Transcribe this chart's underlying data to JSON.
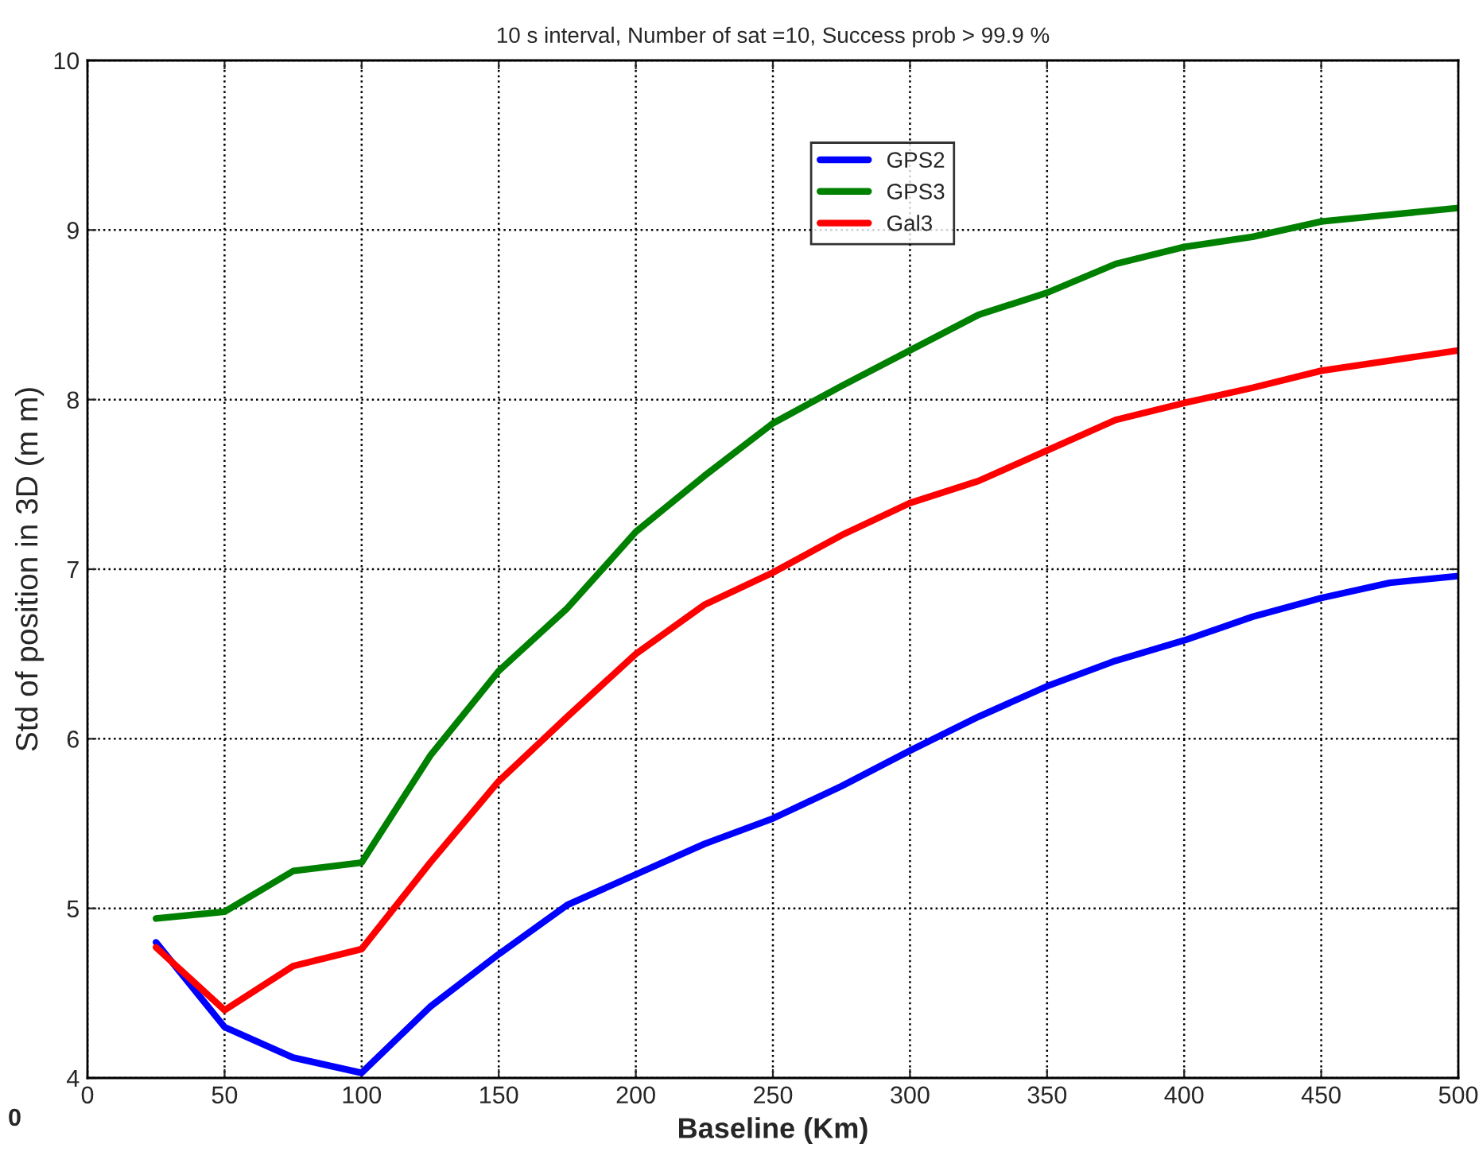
{
  "chart_data": {
    "type": "line",
    "title": "10 s interval, Number of sat =10, Success prob > 99.9 %",
    "xlabel": "Baseline (Km)",
    "ylabel": "Std of position in 3D (m m)",
    "x": [
      25,
      50,
      75,
      100,
      125,
      150,
      175,
      200,
      225,
      250,
      275,
      300,
      325,
      350,
      375,
      400,
      425,
      450,
      475,
      500
    ],
    "series": [
      {
        "name": "GPS2",
        "color": "#0000ff",
        "values": [
          4.8,
          4.3,
          4.12,
          4.03,
          4.42,
          4.73,
          5.02,
          5.2,
          5.38,
          5.53,
          5.72,
          5.93,
          6.13,
          6.31,
          6.46,
          6.58,
          6.72,
          6.83,
          6.92,
          6.96
        ]
      },
      {
        "name": "GPS3",
        "color": "#008000",
        "values": [
          4.94,
          4.98,
          5.22,
          5.27,
          5.9,
          6.4,
          6.77,
          7.22,
          7.55,
          7.86,
          8.08,
          8.29,
          8.5,
          8.63,
          8.8,
          8.9,
          8.96,
          9.05,
          9.09,
          9.13
        ]
      },
      {
        "name": "Gal3",
        "color": "#ff0000",
        "values": [
          4.77,
          4.4,
          4.66,
          4.76,
          5.27,
          5.75,
          6.13,
          6.5,
          6.79,
          6.98,
          7.2,
          7.39,
          7.52,
          7.7,
          7.88,
          7.98,
          8.07,
          8.17,
          8.23,
          8.29
        ]
      }
    ],
    "xlim": [
      0,
      500
    ],
    "xticks": [
      0,
      50,
      100,
      150,
      200,
      250,
      300,
      350,
      400,
      450,
      500
    ],
    "ylim": [
      4,
      10
    ],
    "yticks": [
      4,
      5,
      6,
      7,
      8,
      9,
      10
    ],
    "grid": true,
    "legend": "top",
    "line_style": "solid",
    "marker": "none",
    "annotations": [
      "0"
    ]
  }
}
